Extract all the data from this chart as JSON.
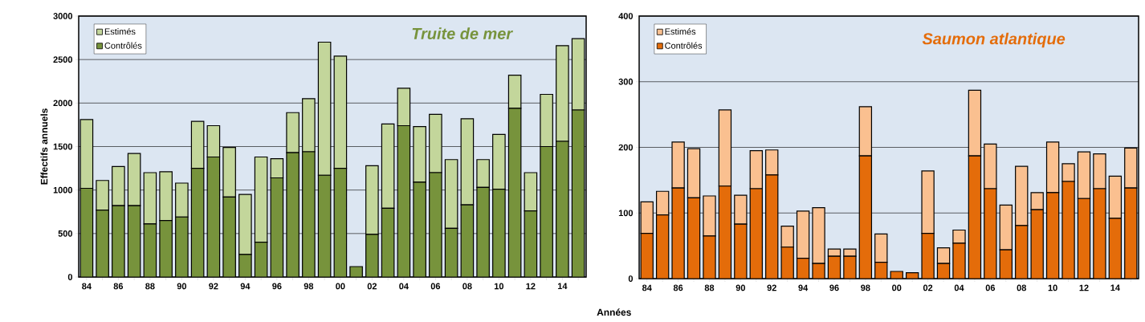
{
  "chart_data": [
    {
      "type": "bar",
      "title": "Truite de mer",
      "ylabel": "Effectifs annuels",
      "xlabel": "Années",
      "stacked": true,
      "grid": "y",
      "legend": "top left",
      "categories": [
        "84",
        null,
        "86",
        null,
        "88",
        null,
        "90",
        null,
        "92",
        null,
        "94",
        null,
        "96",
        null,
        "98",
        null,
        "00",
        null,
        "02",
        null,
        "04",
        null,
        "06",
        null,
        "08",
        null,
        "10",
        null,
        "12",
        null,
        "14",
        null
      ],
      "ylim": [
        0,
        3000
      ],
      "yticks": [
        0,
        500,
        1000,
        1500,
        2000,
        2500,
        3000
      ],
      "series": [
        {
          "name": "Contrôlés",
          "color": "#77933c",
          "values": [
            1020,
            770,
            820,
            820,
            610,
            650,
            690,
            1250,
            1380,
            920,
            260,
            400,
            1140,
            1430,
            1440,
            1170,
            1250,
            120,
            490,
            790,
            1740,
            1090,
            1200,
            560,
            830,
            1030,
            1010,
            1940,
            760,
            1500,
            1560,
            1920
          ]
        },
        {
          "name": "Estimés",
          "color": "#c3d69b",
          "values": [
            790,
            340,
            450,
            600,
            590,
            560,
            390,
            540,
            360,
            570,
            690,
            980,
            220,
            460,
            610,
            1530,
            1290,
            0,
            790,
            970,
            430,
            640,
            670,
            790,
            990,
            320,
            630,
            380,
            440,
            600,
            1100,
            820
          ]
        }
      ]
    },
    {
      "type": "bar",
      "title": "Saumon atlantique",
      "stacked": true,
      "grid": "y",
      "legend": "top left",
      "categories": [
        "84",
        null,
        "86",
        null,
        "88",
        null,
        "90",
        null,
        "92",
        null,
        "94",
        null,
        "96",
        null,
        "98",
        null,
        "00",
        null,
        "02",
        null,
        "04",
        null,
        "06",
        null,
        "08",
        null,
        "10",
        null,
        "12",
        null,
        "14",
        null
      ],
      "ylim": [
        0,
        400
      ],
      "yticks": [
        0,
        100,
        200,
        300,
        400
      ],
      "series": [
        {
          "name": "Contrôlés",
          "color": "#e46c0a",
          "values": [
            69,
            97,
            138,
            123,
            65,
            141,
            83,
            137,
            158,
            48,
            31,
            23,
            34,
            34,
            187,
            25,
            11,
            9,
            69,
            23,
            54,
            187,
            137,
            44,
            81,
            105,
            131,
            148,
            122,
            137,
            92,
            138
          ]
        },
        {
          "name": "Estimés",
          "color": "#fac090",
          "values": [
            48,
            36,
            70,
            75,
            61,
            116,
            44,
            58,
            38,
            32,
            72,
            85,
            11,
            11,
            75,
            43,
            0,
            0,
            95,
            24,
            20,
            100,
            68,
            68,
            90,
            26,
            77,
            27,
            71,
            53,
            64,
            61
          ]
        }
      ]
    }
  ]
}
